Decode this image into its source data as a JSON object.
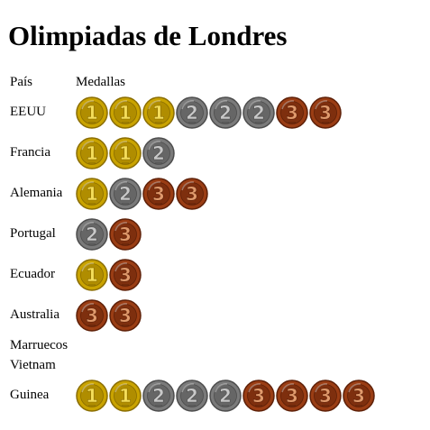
{
  "title": "Olimpiadas de Londres",
  "headers": {
    "country": "País",
    "medals": "Medallas"
  },
  "medal_colors": {
    "1": {
      "rim": "#8a6d00",
      "face": "#c9a300",
      "inner": "#b08d00",
      "num": "#f4dd5a"
    },
    "2": {
      "rim": "#4d4d4d",
      "face": "#7a7a7a",
      "inner": "#666666",
      "num": "#c8c8c8"
    },
    "3": {
      "rim": "#5e2008",
      "face": "#9a3d14",
      "inner": "#7e2f0e",
      "num": "#e09a6c"
    }
  },
  "rows": [
    {
      "country": "EEUU",
      "medals": [
        "1",
        "1",
        "1",
        "2",
        "2",
        "2",
        "3",
        "3"
      ]
    },
    {
      "country": "Francia",
      "medals": [
        "1",
        "1",
        "2"
      ]
    },
    {
      "country": "Alemania",
      "medals": [
        "1",
        "2",
        "3",
        "3"
      ]
    },
    {
      "country": "Portugal",
      "medals": [
        "2",
        "3"
      ]
    },
    {
      "country": "Ecuador",
      "medals": [
        "1",
        "3"
      ]
    },
    {
      "country": "Australia",
      "medals": [
        "3",
        "3"
      ]
    },
    {
      "country": "Marruecos",
      "medals": []
    },
    {
      "country": "Vietnam",
      "medals": []
    },
    {
      "country": "Guinea",
      "medals": [
        "1",
        "1",
        "2",
        "2",
        "2",
        "3",
        "3",
        "3",
        "3"
      ]
    }
  ]
}
